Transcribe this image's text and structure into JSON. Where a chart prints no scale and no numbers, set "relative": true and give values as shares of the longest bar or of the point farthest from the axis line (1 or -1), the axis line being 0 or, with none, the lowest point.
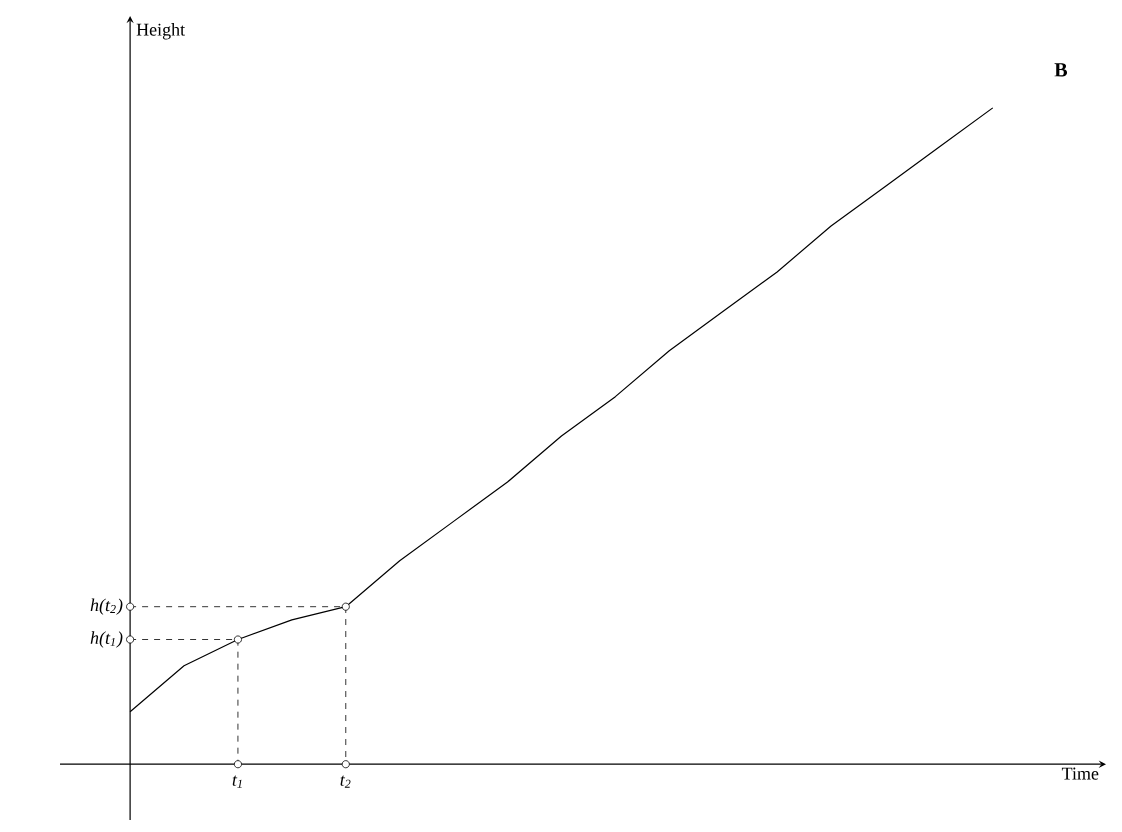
{
  "chart_data": {
    "type": "line",
    "relative": true,
    "xlabel": "Time",
    "ylabel": "Height",
    "title": "B",
    "categories": [
      null,
      null,
      "t$_{1}$",
      null,
      "t$_{2}$",
      null,
      null,
      null,
      null,
      null,
      null,
      null,
      null,
      null,
      null,
      null,
      null
    ],
    "series": [
      {
        "color": "#000000",
        "values": [
          0.08,
          0.15,
          0.19,
          0.22,
          0.24,
          0.31,
          0.37,
          0.43,
          0.5,
          0.56,
          0.63,
          0.69,
          0.75,
          0.82,
          0.88,
          0.94,
          1.0
        ]
      }
    ],
    "annotations": [
      "h(t$_{1}$)",
      "h(t$_{2}$)"
    ],
    "marker": "none",
    "line_style": "solid"
  }
}
